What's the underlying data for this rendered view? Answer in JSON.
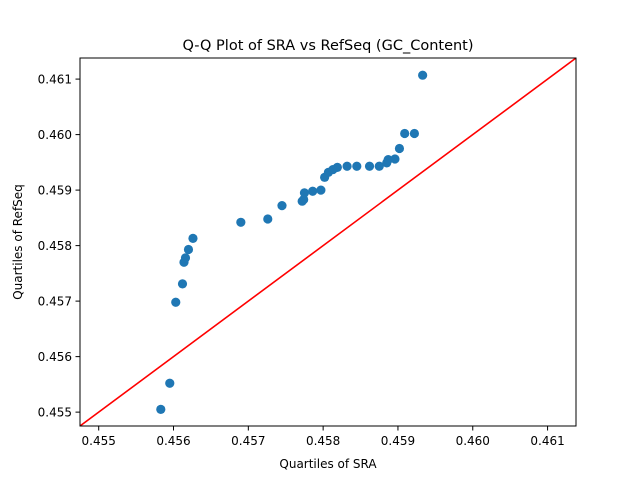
{
  "chart_data": {
    "type": "scatter",
    "title": "Q-Q Plot of SRA vs RefSeq (GC_Content)",
    "xlabel": "Quartiles of SRA",
    "ylabel": "Quartiles of RefSeq",
    "xlim": [
      0.45475,
      0.46138
    ],
    "ylim": [
      0.45475,
      0.46138
    ],
    "x_ticks": [
      0.455,
      0.456,
      0.457,
      0.458,
      0.459,
      0.46,
      0.461
    ],
    "x_tick_labels": [
      "0.455",
      "0.456",
      "0.457",
      "0.458",
      "0.459",
      "0.460",
      "0.461"
    ],
    "y_ticks": [
      0.455,
      0.456,
      0.457,
      0.458,
      0.459,
      0.46,
      0.461
    ],
    "y_tick_labels": [
      "0.455",
      "0.456",
      "0.457",
      "0.458",
      "0.459",
      "0.460",
      "0.461"
    ],
    "grid": false,
    "reference_line": {
      "from": [
        0.45475,
        0.45475
      ],
      "to": [
        0.46138,
        0.46138
      ],
      "color": "#ff0000"
    },
    "marker_color": "#1f77b4",
    "points": [
      {
        "x": 0.45583,
        "y": 0.45505
      },
      {
        "x": 0.45595,
        "y": 0.45552
      },
      {
        "x": 0.45603,
        "y": 0.45698
      },
      {
        "x": 0.45612,
        "y": 0.45731
      },
      {
        "x": 0.45614,
        "y": 0.4577
      },
      {
        "x": 0.45616,
        "y": 0.45778
      },
      {
        "x": 0.4562,
        "y": 0.45793
      },
      {
        "x": 0.45626,
        "y": 0.45813
      },
      {
        "x": 0.4569,
        "y": 0.45842
      },
      {
        "x": 0.45726,
        "y": 0.45848
      },
      {
        "x": 0.45745,
        "y": 0.45872
      },
      {
        "x": 0.45772,
        "y": 0.4588
      },
      {
        "x": 0.45774,
        "y": 0.45883
      },
      {
        "x": 0.45775,
        "y": 0.45895
      },
      {
        "x": 0.45786,
        "y": 0.45898
      },
      {
        "x": 0.45797,
        "y": 0.459
      },
      {
        "x": 0.45802,
        "y": 0.45923
      },
      {
        "x": 0.45807,
        "y": 0.45932
      },
      {
        "x": 0.45813,
        "y": 0.45937
      },
      {
        "x": 0.45819,
        "y": 0.45941
      },
      {
        "x": 0.45832,
        "y": 0.45943
      },
      {
        "x": 0.45845,
        "y": 0.45943
      },
      {
        "x": 0.45862,
        "y": 0.45943
      },
      {
        "x": 0.45875,
        "y": 0.45943
      },
      {
        "x": 0.45885,
        "y": 0.45949
      },
      {
        "x": 0.45887,
        "y": 0.45955
      },
      {
        "x": 0.45896,
        "y": 0.45956
      },
      {
        "x": 0.45902,
        "y": 0.45975
      },
      {
        "x": 0.45909,
        "y": 0.46002
      },
      {
        "x": 0.45922,
        "y": 0.46002
      },
      {
        "x": 0.45933,
        "y": 0.46107
      }
    ]
  }
}
